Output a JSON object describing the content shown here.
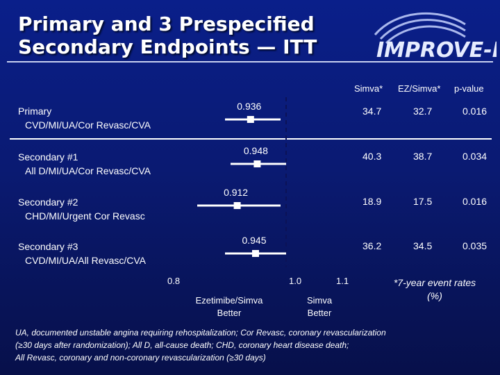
{
  "title": {
    "line1": "Primary and 3 Prespecified",
    "line2": "Secondary Endpoints — ITT"
  },
  "logo": {
    "text": "IMPROVE-IT"
  },
  "columns": {
    "simva": "Simva*",
    "ez_simva": "EZ/Simva*",
    "p_value": "p-value"
  },
  "rows": [
    {
      "label": "Primary",
      "sublabel": "CVD/MI/UA/Cor Revasc/CVA",
      "hr": "0.936",
      "simva": "34.7",
      "ez_simva": "32.7",
      "p": "0.016"
    },
    {
      "label": "Secondary #1",
      "sublabel": "All D/MI/UA/Cor Revasc/CVA",
      "hr": "0.948",
      "simva": "40.3",
      "ez_simva": "38.7",
      "p": "0.034"
    },
    {
      "label": "Secondary #2",
      "sublabel": "CHD/MI/Urgent Cor Revasc",
      "hr": "0.912",
      "simva": "18.9",
      "ez_simva": "17.5",
      "p": "0.016"
    },
    {
      "label": "Secondary #3",
      "sublabel": "CVD/MI/UA/All Revasc/CVA",
      "hr": "0.945",
      "simva": "36.2",
      "ez_simva": "34.5",
      "p": "0.035"
    }
  ],
  "chart_data": {
    "type": "forest",
    "xlim": [
      0.8,
      1.1
    ],
    "ticks": [
      "0.8",
      "1.0",
      "1.1"
    ],
    "reference_line": 1.0,
    "points": [
      {
        "estimate": 0.936,
        "ci": [
          0.89,
          0.99
        ]
      },
      {
        "estimate": 0.948,
        "ci": [
          0.9,
          1.0
        ]
      },
      {
        "estimate": 0.912,
        "ci": [
          0.84,
          0.99
        ]
      },
      {
        "estimate": 0.945,
        "ci": [
          0.89,
          1.0
        ]
      }
    ]
  },
  "axis": {
    "left_better": "Ezetimibe/Simva Better",
    "right_better": "Simva Better"
  },
  "event_note": "*7-year event rates (%)",
  "footnote": {
    "line1": "UA, documented unstable angina requiring rehospitalization; Cor Revasc, coronary revascularization",
    "line2": "(≥30 days after randomization); All D, all-cause death; CHD, coronary heart disease death;",
    "line3": "All Revasc, coronary and non-coronary revascularization (≥30 days)"
  },
  "colors": {
    "background": "#0a1a72",
    "text": "#ffffff"
  }
}
